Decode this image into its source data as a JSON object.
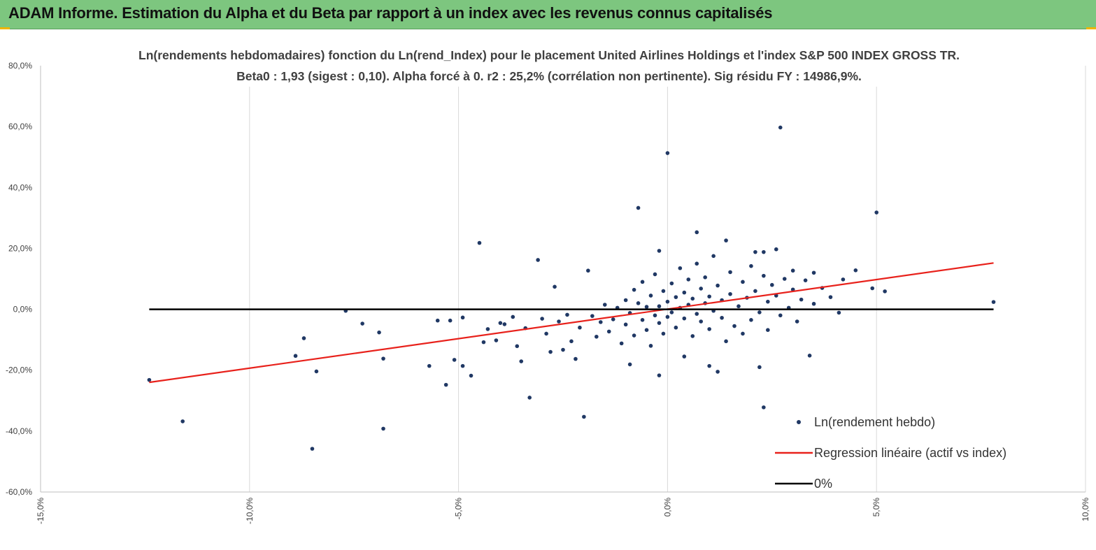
{
  "header": {
    "title": "ADAM Informe. Estimation du Alpha et du Beta par rapport à un index avec les revenus connus capitalisés",
    "background": "#7dc67f"
  },
  "chart_data": {
    "type": "scatter",
    "title": "Ln(rendements hebdomadaires) fonction du Ln(rend_Index) pour le placement United Airlines Holdings  et l'index S&P 500 INDEX GROSS TR.",
    "subtitle": "Beta0 : 1,93 (sigest : 0,10). Alpha forcé à 0. r2 : 25,2% (corrélation non pertinente). Sig résidu FY : 14986,9%.",
    "xlabel": "",
    "ylabel": "",
    "xlim": [
      -15,
      10
    ],
    "ylim": [
      -60,
      80
    ],
    "x_ticks": [
      -15,
      -10,
      -5,
      0,
      5,
      10
    ],
    "y_ticks": [
      -60,
      -40,
      -20,
      0,
      20,
      40,
      60,
      80
    ],
    "x_tick_labels": [
      "-15,0%",
      "-10,0%",
      "-5,0%",
      "0,0%",
      "5,0%",
      "10,0%"
    ],
    "y_tick_labels": [
      "-60,0%",
      "-40,0%",
      "-20,0%",
      "0,0%",
      "20,0%",
      "40,0%",
      "60,0%",
      "80,0%"
    ],
    "grid": "vertical",
    "legend_position": "bottom-right",
    "series": [
      {
        "name": "Ln(rendement hebdo)",
        "kind": "scatter",
        "color": "#203864",
        "points": [
          [
            -12.4,
            -23.2
          ],
          [
            -11.6,
            -36.8
          ],
          [
            -8.9,
            -15.3
          ],
          [
            -8.7,
            -9.5
          ],
          [
            -8.5,
            -45.8
          ],
          [
            -8.4,
            -20.4
          ],
          [
            -7.7,
            -0.5
          ],
          [
            -7.3,
            -4.7
          ],
          [
            -6.9,
            -7.6
          ],
          [
            -6.8,
            -16.2
          ],
          [
            -6.8,
            -39.2
          ],
          [
            -5.7,
            -18.6
          ],
          [
            -5.5,
            -3.7
          ],
          [
            -5.3,
            -24.8
          ],
          [
            -5.2,
            -3.7
          ],
          [
            -5.1,
            -16.6
          ],
          [
            -4.9,
            -18.6
          ],
          [
            -4.9,
            -2.7
          ],
          [
            -4.7,
            -21.8
          ],
          [
            -4.5,
            21.8
          ],
          [
            -4.4,
            -10.8
          ],
          [
            -4.3,
            -6.5
          ],
          [
            -4.1,
            -10.2
          ],
          [
            -3.9,
            -4.9
          ],
          [
            -3.6,
            -12.1
          ],
          [
            -3.5,
            -17.1
          ],
          [
            -3.3,
            -29.0
          ],
          [
            -3.1,
            16.2
          ],
          [
            -2.8,
            -14.0
          ],
          [
            -2.7,
            7.4
          ],
          [
            -2.5,
            -13.3
          ],
          [
            -2.2,
            -16.3
          ],
          [
            -2.0,
            -35.3
          ],
          [
            -1.9,
            12.7
          ],
          [
            -0.9,
            -18.1
          ],
          [
            -0.7,
            33.3
          ],
          [
            -0.2,
            -21.7
          ],
          [
            -0.2,
            19.2
          ],
          [
            0.0,
            51.3
          ],
          [
            0.4,
            -15.5
          ],
          [
            0.7,
            25.3
          ],
          [
            1.0,
            -18.6
          ],
          [
            1.2,
            -20.5
          ],
          [
            1.4,
            22.6
          ],
          [
            2.2,
            -19.0
          ],
          [
            2.1,
            18.8
          ],
          [
            2.3,
            18.8
          ],
          [
            2.3,
            -32.2
          ],
          [
            2.6,
            19.7
          ],
          [
            2.7,
            59.7
          ],
          [
            3.0,
            12.7
          ],
          [
            3.4,
            -15.2
          ],
          [
            3.5,
            12.0
          ],
          [
            4.1,
            -1.1
          ],
          [
            4.5,
            12.8
          ],
          [
            4.9,
            6.9
          ],
          [
            5.0,
            31.8
          ],
          [
            5.2,
            5.9
          ],
          [
            7.8,
            2.4
          ],
          [
            -4.0,
            -4.5
          ],
          [
            -3.7,
            -2.5
          ],
          [
            -3.4,
            -6.2
          ],
          [
            -3.0,
            -3.1
          ],
          [
            -2.9,
            -8.0
          ],
          [
            -2.6,
            -4.0
          ],
          [
            -2.4,
            -1.8
          ],
          [
            -2.3,
            -10.5
          ],
          [
            -2.1,
            -6.0
          ],
          [
            -1.8,
            -2.2
          ],
          [
            -1.7,
            -9.0
          ],
          [
            -1.6,
            -4.2
          ],
          [
            -1.5,
            1.5
          ],
          [
            -1.4,
            -7.3
          ],
          [
            -1.3,
            -3.3
          ],
          [
            -1.2,
            0.5
          ],
          [
            -1.1,
            -11.2
          ],
          [
            -1.0,
            3.0
          ],
          [
            -1.0,
            -5.0
          ],
          [
            -0.9,
            -1.2
          ],
          [
            -0.8,
            6.4
          ],
          [
            -0.8,
            -8.6
          ],
          [
            -0.7,
            2.0
          ],
          [
            -0.6,
            -3.5
          ],
          [
            -0.6,
            9.0
          ],
          [
            -0.5,
            -6.8
          ],
          [
            -0.5,
            0.8
          ],
          [
            -0.4,
            4.5
          ],
          [
            -0.4,
            -12.0
          ],
          [
            -0.3,
            -2.0
          ],
          [
            -0.3,
            11.5
          ],
          [
            -0.2,
            1.0
          ],
          [
            -0.2,
            -4.5
          ],
          [
            -0.1,
            6.0
          ],
          [
            -0.1,
            -8.0
          ],
          [
            0.0,
            2.5
          ],
          [
            0.0,
            -2.5
          ],
          [
            0.1,
            8.5
          ],
          [
            0.1,
            -1.0
          ],
          [
            0.2,
            4.0
          ],
          [
            0.2,
            -6.0
          ],
          [
            0.3,
            13.5
          ],
          [
            0.3,
            0.5
          ],
          [
            0.4,
            5.5
          ],
          [
            0.4,
            -3.0
          ],
          [
            0.5,
            9.8
          ],
          [
            0.5,
            1.5
          ],
          [
            0.6,
            -8.8
          ],
          [
            0.6,
            3.5
          ],
          [
            0.7,
            15.0
          ],
          [
            0.7,
            -1.5
          ],
          [
            0.8,
            6.8
          ],
          [
            0.8,
            -4.0
          ],
          [
            0.9,
            2.0
          ],
          [
            0.9,
            10.5
          ],
          [
            1.0,
            -6.5
          ],
          [
            1.0,
            4.2
          ],
          [
            1.1,
            17.5
          ],
          [
            1.1,
            -0.5
          ],
          [
            1.2,
            7.8
          ],
          [
            1.3,
            -2.8
          ],
          [
            1.3,
            3.0
          ],
          [
            1.4,
            -10.5
          ],
          [
            1.5,
            12.2
          ],
          [
            1.5,
            5.0
          ],
          [
            1.6,
            -5.5
          ],
          [
            1.7,
            1.0
          ],
          [
            1.8,
            9.0
          ],
          [
            1.8,
            -8.0
          ],
          [
            1.9,
            3.8
          ],
          [
            2.0,
            14.2
          ],
          [
            2.0,
            -3.5
          ],
          [
            2.1,
            6.0
          ],
          [
            2.2,
            -1.0
          ],
          [
            2.3,
            11.0
          ],
          [
            2.4,
            2.5
          ],
          [
            2.4,
            -6.8
          ],
          [
            2.5,
            8.0
          ],
          [
            2.6,
            4.5
          ],
          [
            2.7,
            -2.0
          ],
          [
            2.8,
            10.0
          ],
          [
            2.9,
            0.5
          ],
          [
            3.0,
            6.5
          ],
          [
            3.1,
            -4.0
          ],
          [
            3.2,
            3.2
          ],
          [
            3.3,
            9.5
          ],
          [
            3.5,
            1.8
          ],
          [
            3.7,
            7.0
          ],
          [
            3.9,
            4.0
          ],
          [
            4.2,
            9.8
          ]
        ]
      },
      {
        "name": "Regression linéaire (actif vs index)",
        "kind": "line",
        "color": "#e8211b",
        "points": [
          [
            -12.4,
            -24.0
          ],
          [
            7.8,
            15.2
          ]
        ]
      },
      {
        "name": "0%",
        "kind": "line",
        "color": "#000000",
        "points": [
          [
            -12.4,
            0
          ],
          [
            7.8,
            0
          ]
        ]
      }
    ]
  }
}
